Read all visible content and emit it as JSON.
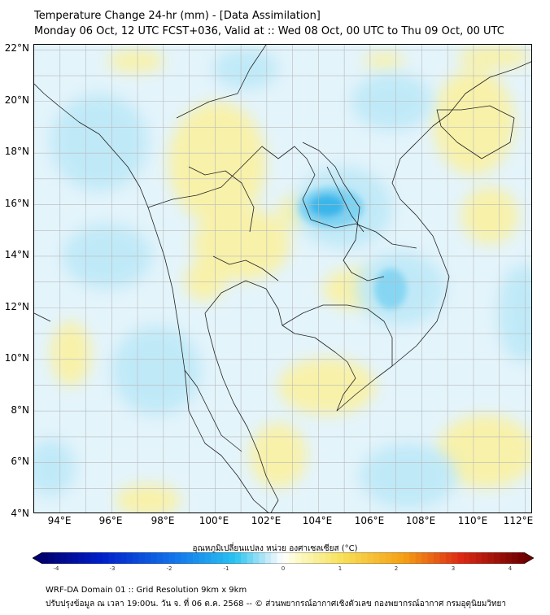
{
  "header": {
    "title": "Temperature Change 24-hr (mm) - [Data Assimilation]",
    "subtitle": "Monday 06 Oct, 12 UTC FCST+036, Valid at :: Wed 08 Oct, 00 UTC to Thu 09 Oct, 00 UTC"
  },
  "map": {
    "lat_ticks": [
      "22°N",
      "20°N",
      "18°N",
      "16°N",
      "14°N",
      "12°N",
      "10°N",
      "8°N",
      "6°N",
      "4°N"
    ],
    "lon_ticks": [
      "94°E",
      "96°E",
      "98°E",
      "100°E",
      "102°E",
      "104°E",
      "106°E",
      "108°E",
      "110°E",
      "112°E"
    ],
    "lat_range": [
      4,
      22.2
    ],
    "lon_range": [
      93,
      112.3
    ],
    "ocean_color": "#e3f4fb",
    "border_color": "#000000"
  },
  "colorbar": {
    "label": "อุณหภูมิเปลี่ยนแปลง หน่วย องศาเซลเซียส (°C)",
    "ticks": [
      "-4",
      "-3",
      "-2",
      "-1",
      "0",
      "1",
      "2",
      "3",
      "4"
    ],
    "range": [
      -4,
      4
    ]
  },
  "footer": {
    "line1": "WRF-DA Domain 01 :: Grid Resolution 9km x 9km",
    "line2": "ปรับปรุงข้อมูล ณ เวลา 19:00น. วัน จ. ที่ 06 ต.ค. 2568 -- © ส่วนพยากรณ์อากาศเชิงตัวเลข กองพยากรณ์อากาศ กรมอุตุนิยมวิทยา"
  }
}
